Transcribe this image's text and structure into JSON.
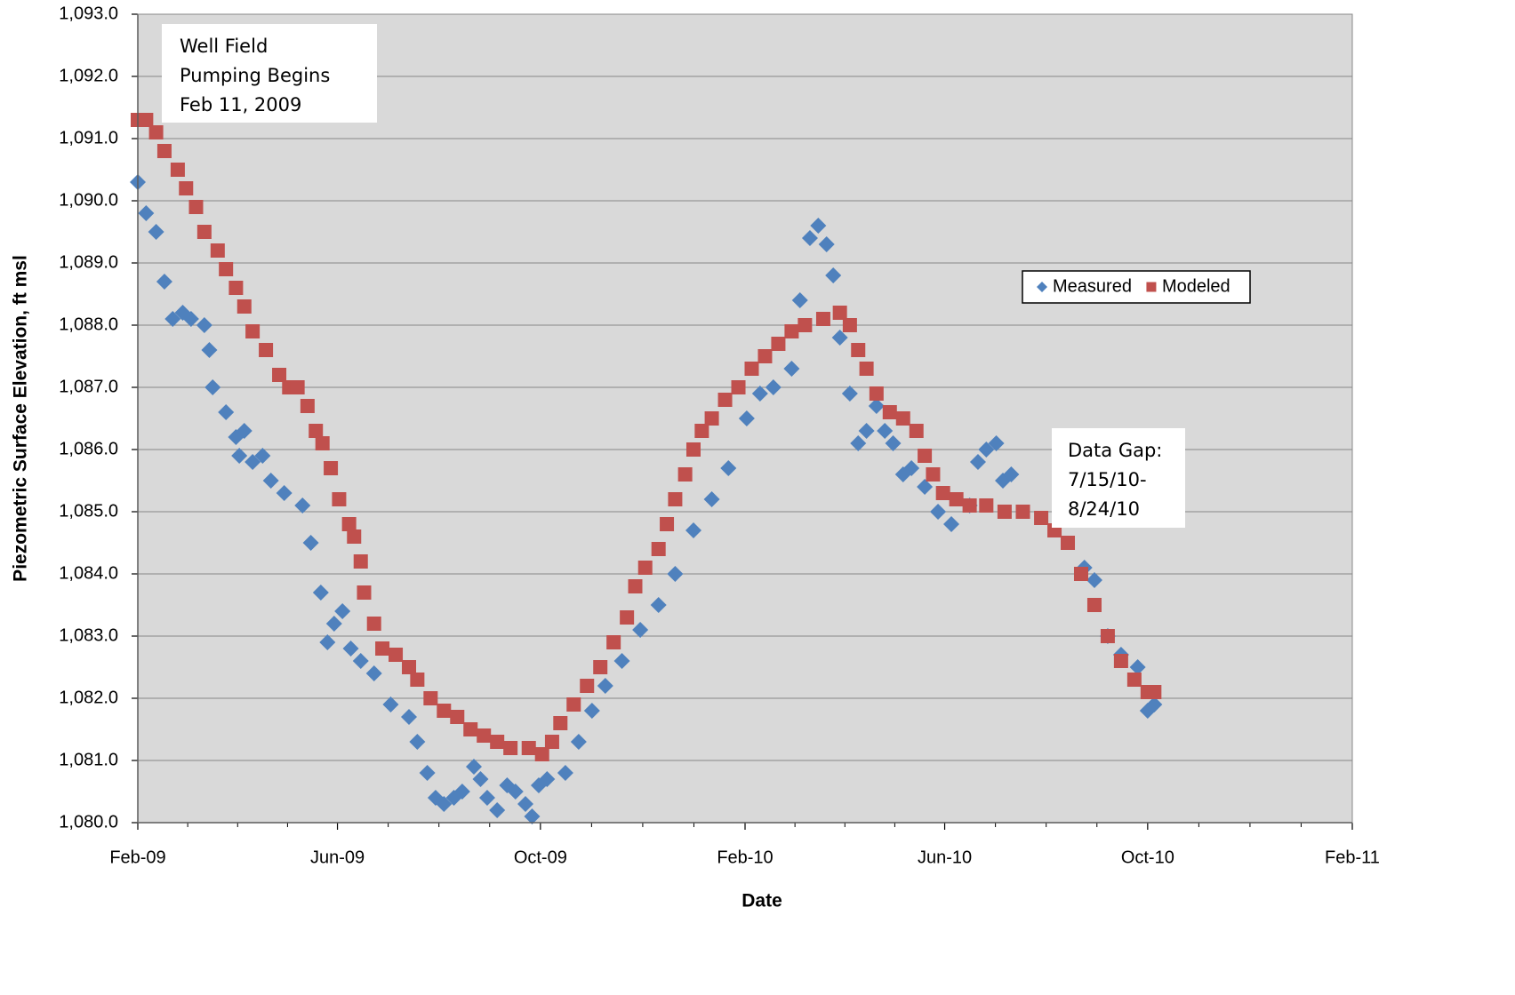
{
  "chart_data": {
    "type": "scatter",
    "x_label": "Date",
    "y_label": "Piezometric Surface Elevation, ft msl",
    "xlim": [
      39845,
      40575
    ],
    "xticks": [
      {
        "value": 39845,
        "label": "Feb-09"
      },
      {
        "value": 39965,
        "label": "Jun-09"
      },
      {
        "value": 40087,
        "label": "Oct-09"
      },
      {
        "value": 40210,
        "label": "Feb-10"
      },
      {
        "value": 40330,
        "label": "Jun-10"
      },
      {
        "value": 40452,
        "label": "Oct-10"
      },
      {
        "value": 40575,
        "label": "Feb-11"
      }
    ],
    "ylim": [
      1080,
      1093
    ],
    "yticks": [
      {
        "value": 1080,
        "label": "1,080.0"
      },
      {
        "value": 1081,
        "label": "1,081.0"
      },
      {
        "value": 1082,
        "label": "1,082.0"
      },
      {
        "value": 1083,
        "label": "1,083.0"
      },
      {
        "value": 1084,
        "label": "1,084.0"
      },
      {
        "value": 1085,
        "label": "1,085.0"
      },
      {
        "value": 1086,
        "label": "1,086.0"
      },
      {
        "value": 1087,
        "label": "1,087.0"
      },
      {
        "value": 1088,
        "label": "1,088.0"
      },
      {
        "value": 1089,
        "label": "1,089.0"
      },
      {
        "value": 1090,
        "label": "1,090.0"
      },
      {
        "value": 1091,
        "label": "1,091.0"
      },
      {
        "value": 1092,
        "label": "1,092.0"
      },
      {
        "value": 1093,
        "label": "1,093.0"
      }
    ],
    "grid": true,
    "series": [
      {
        "name": "Measured",
        "color": "#4f81bd",
        "marker": "diamond",
        "x": [
          39845,
          39850,
          39856,
          39861,
          39866,
          39872,
          39877,
          39885,
          39888,
          39890,
          39898,
          39904,
          39906,
          39909,
          39914,
          39920,
          39925,
          39933,
          39944,
          39949,
          39955,
          39959,
          39963,
          39968,
          39973,
          39979,
          39987,
          39997,
          40008,
          40013,
          40019,
          40024,
          40029,
          40035,
          40040,
          40047,
          40051,
          40055,
          40061,
          40067,
          40072,
          40078,
          40082,
          40086,
          40091,
          40102,
          40110,
          40118,
          40126,
          40136,
          40147,
          40158,
          40168,
          40179,
          40190,
          40200,
          40211,
          40219,
          40227,
          40238,
          40243,
          40249,
          40254,
          40259,
          40263,
          40267,
          40273,
          40278,
          40283,
          40289,
          40294,
          40299,
          40305,
          40310,
          40318,
          40326,
          40334,
          40345,
          40350,
          40355,
          40361,
          40365,
          40370,
          40414,
          40420,
          40428,
          40436,
          40446,
          40452,
          40456
        ],
        "values": [
          1090.3,
          1089.8,
          1089.5,
          1088.7,
          1088.1,
          1088.2,
          1088.1,
          1088.0,
          1087.6,
          1087.0,
          1086.6,
          1086.2,
          1085.9,
          1086.3,
          1085.8,
          1085.9,
          1085.5,
          1085.3,
          1085.1,
          1084.5,
          1083.7,
          1082.9,
          1083.2,
          1083.4,
          1082.8,
          1082.6,
          1082.4,
          1081.9,
          1081.7,
          1081.3,
          1080.8,
          1080.4,
          1080.3,
          1080.4,
          1080.5,
          1080.9,
          1080.7,
          1080.4,
          1080.2,
          1080.6,
          1080.5,
          1080.3,
          1080.1,
          1080.6,
          1080.7,
          1080.8,
          1081.3,
          1081.8,
          1082.2,
          1082.6,
          1083.1,
          1083.5,
          1084.0,
          1084.7,
          1085.2,
          1085.7,
          1086.5,
          1086.9,
          1087.0,
          1087.3,
          1088.4,
          1089.4,
          1089.6,
          1089.3,
          1088.8,
          1087.8,
          1086.9,
          1086.1,
          1086.3,
          1086.7,
          1086.3,
          1086.1,
          1085.6,
          1085.7,
          1085.4,
          1085.0,
          1084.8,
          1085.1,
          1085.8,
          1086.0,
          1086.1,
          1085.5,
          1085.6,
          1084.1,
          1083.9,
          1083.0,
          1082.7,
          1082.5,
          1081.8,
          1081.9
        ]
      },
      {
        "name": "Modeled",
        "color": "#c0504d",
        "marker": "square",
        "x": [
          39845,
          39850,
          39856,
          39861,
          39869,
          39874,
          39880,
          39885,
          39893,
          39898,
          39904,
          39909,
          39914,
          39922,
          39930,
          39936,
          39941,
          39947,
          39952,
          39956,
          39961,
          39966,
          39972,
          39975,
          39979,
          39981,
          39987,
          39992,
          40000,
          40008,
          40013,
          40021,
          40029,
          40037,
          40045,
          40053,
          40061,
          40069,
          40080,
          40088,
          40094,
          40099,
          40107,
          40115,
          40123,
          40131,
          40139,
          40144,
          40150,
          40158,
          40163,
          40168,
          40174,
          40179,
          40184,
          40190,
          40198,
          40206,
          40214,
          40222,
          40230,
          40238,
          40246,
          40257,
          40267,
          40273,
          40278,
          40283,
          40289,
          40297,
          40305,
          40313,
          40318,
          40323,
          40329,
          40337,
          40345,
          40355,
          40366,
          40377,
          40388,
          40396,
          40404,
          40412,
          40420,
          40428,
          40436,
          40444,
          40452,
          40456
        ],
        "values": [
          1091.3,
          1091.3,
          1091.1,
          1090.8,
          1090.5,
          1090.2,
          1089.9,
          1089.5,
          1089.2,
          1088.9,
          1088.6,
          1088.3,
          1087.9,
          1087.6,
          1087.2,
          1087.0,
          1087.0,
          1086.7,
          1086.3,
          1086.1,
          1085.7,
          1085.2,
          1084.8,
          1084.6,
          1084.2,
          1083.7,
          1083.2,
          1082.8,
          1082.7,
          1082.5,
          1082.3,
          1082.0,
          1081.8,
          1081.7,
          1081.5,
          1081.4,
          1081.3,
          1081.2,
          1081.2,
          1081.1,
          1081.3,
          1081.6,
          1081.9,
          1082.2,
          1082.5,
          1082.9,
          1083.3,
          1083.8,
          1084.1,
          1084.4,
          1084.8,
          1085.2,
          1085.6,
          1086.0,
          1086.3,
          1086.5,
          1086.8,
          1087.0,
          1087.3,
          1087.5,
          1087.7,
          1087.9,
          1088.0,
          1088.1,
          1088.2,
          1088.0,
          1087.6,
          1087.3,
          1086.9,
          1086.6,
          1086.5,
          1086.3,
          1085.9,
          1085.6,
          1085.3,
          1085.2,
          1085.1,
          1085.1,
          1085.0,
          1085.0,
          1084.9,
          1084.7,
          1084.5,
          1084.0,
          1083.5,
          1083.0,
          1082.6,
          1082.3,
          1082.1,
          1082.1
        ]
      }
    ],
    "annotations": [
      [
        "Well Field",
        "Pumping Begins",
        "Feb 11, 2009"
      ],
      [
        "Data Gap:",
        "7/15/10-",
        "8/24/10"
      ]
    ]
  }
}
